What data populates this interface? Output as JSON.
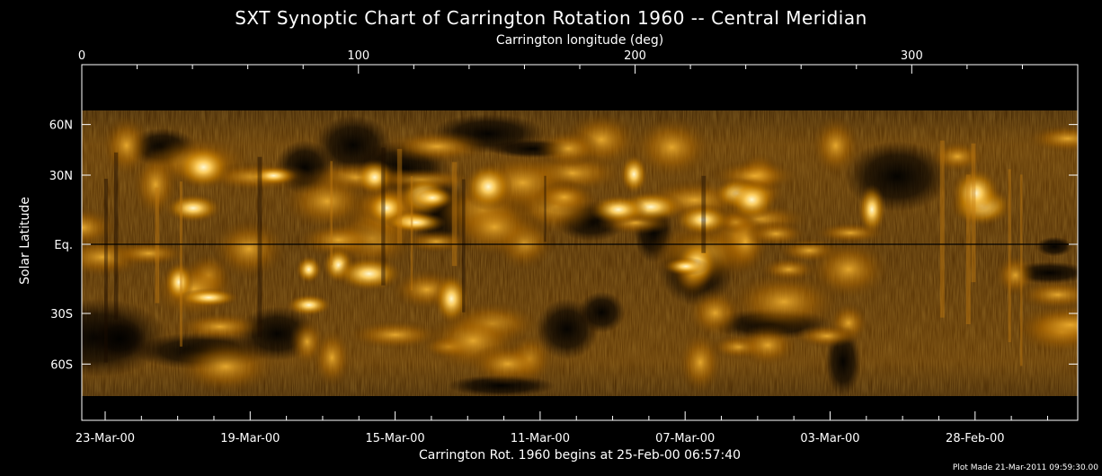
{
  "chart_data": {
    "type": "heatmap",
    "title": "SXT Synoptic Chart of Carrington Rotation 1960 -- Central Meridian",
    "xlabel_top": "Carrington longitude (deg)",
    "xlabel_bottom": "Carrington Rot. 1960 begins at 25-Feb-00 06:57:40",
    "ylabel": "Solar Latitude",
    "footer": "Plot Made 21-Mar-2011 09:59:30.00",
    "x_top_ticks": [
      {
        "value": 0,
        "label": "0"
      },
      {
        "value": 100,
        "label": "100"
      },
      {
        "value": 200,
        "label": "200"
      },
      {
        "value": 300,
        "label": "300"
      }
    ],
    "xlim": [
      0,
      360
    ],
    "y_ticks": [
      {
        "label": "60N"
      },
      {
        "label": "30N"
      },
      {
        "label": "Eq."
      },
      {
        "label": "30S"
      },
      {
        "label": "60S"
      }
    ],
    "x_bottom_ticks": [
      {
        "label": "23-Mar-00"
      },
      {
        "label": "19-Mar-00"
      },
      {
        "label": "15-Mar-00"
      },
      {
        "label": "11-Mar-00"
      },
      {
        "label": "07-Mar-00"
      },
      {
        "label": "03-Mar-00"
      },
      {
        "label": "28-Feb-00"
      }
    ],
    "colormap": [
      "#000000",
      "#2a1400",
      "#6b3a00",
      "#b06e00",
      "#e8a000",
      "#ffd060",
      "#fff4c0"
    ]
  }
}
